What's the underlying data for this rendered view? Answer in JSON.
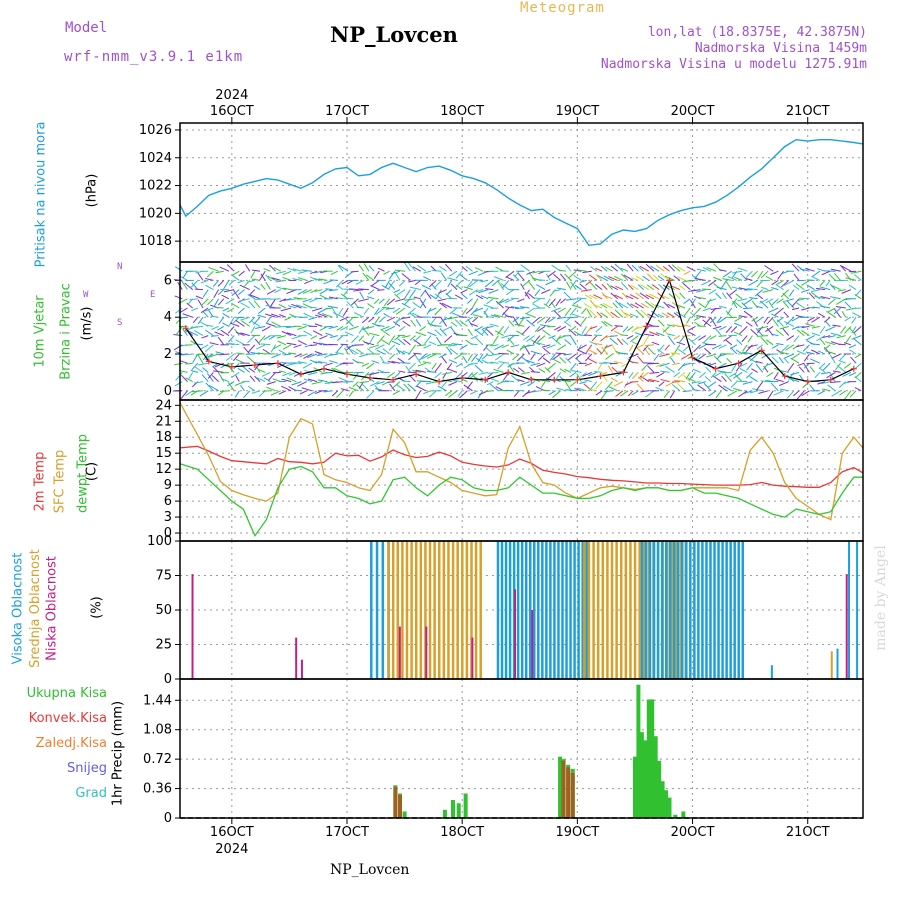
{
  "header": {
    "model_label": "Model",
    "model_value": "wrf-nmm_v3.9.1 e1km",
    "meteogram_label": "Meteogram",
    "station": "NP_Lovcen",
    "lonlat": "lon,lat (18.8375E, 42.3875N)",
    "elevation": "Nadmorska Visina 1459m",
    "model_elevation": "Nadmorska Visina u modelu 1275.91m",
    "footer_station": "NP_Lovcen",
    "watermark": "made by Angel"
  },
  "time_axis": {
    "days": [
      "16OCT",
      "17OCT",
      "18OCT",
      "19OCT",
      "20OCT",
      "21OCT"
    ],
    "year": "2024",
    "range_days": [
      15.55,
      21.48
    ]
  },
  "colors": {
    "pressure": "#1aa0e0",
    "temp2m": "#e83838",
    "sfc": "#d8a028",
    "dew": "#30c830",
    "high": "#1aa0e0",
    "mid": "#d8a028",
    "low": "#c0208a",
    "precip_total": "#30c030",
    "precip_conv": "#e83838",
    "precip_frz": "#f08030",
    "precip_snow": "#6060e0",
    "precip_grad": "#30c0c0"
  },
  "panels": {
    "pressure": {
      "label1": "Pritisak na nivou mora",
      "unit": "(hPa)"
    },
    "wind": {
      "label1": "10m Vjetar",
      "label2": "Brzina i Pravac",
      "unit": "(m/s)",
      "compass_n": "N",
      "compass_w": "W",
      "compass_e": "E",
      "compass_s": "S"
    },
    "temp": {
      "label1": "2m Temp",
      "label2": "SFC Temp",
      "label3": "dewpt Temp",
      "unit": "(C)"
    },
    "cloud": {
      "label1": "Visoka Oblacnost",
      "label2": "Srednja Oblacnost",
      "label3": "Niska Oblacnost",
      "unit": "(%)"
    },
    "precip": {
      "unit": "1hr Precip (mm)",
      "legend": [
        "Ukupna Kisa",
        "Konvek.Kisa",
        "Zaledj.Kisa",
        "Snijeg",
        "Grad"
      ]
    }
  },
  "chart_data": [
    {
      "type": "line",
      "name": "pressure",
      "ylim": [
        1016.5,
        1026.5
      ],
      "yticks": [
        1018,
        1020,
        1022,
        1024,
        1026
      ],
      "x": [
        15.55,
        15.6,
        15.7,
        15.8,
        15.9,
        16.0,
        16.1,
        16.2,
        16.3,
        16.4,
        16.5,
        16.6,
        16.7,
        16.8,
        16.9,
        17.0,
        17.1,
        17.2,
        17.3,
        17.4,
        17.5,
        17.6,
        17.7,
        17.8,
        17.9,
        18.0,
        18.1,
        18.2,
        18.3,
        18.4,
        18.5,
        18.6,
        18.7,
        18.8,
        18.9,
        19.0,
        19.1,
        19.2,
        19.3,
        19.4,
        19.5,
        19.6,
        19.7,
        19.8,
        19.9,
        20.0,
        20.1,
        20.2,
        20.3,
        20.4,
        20.5,
        20.6,
        20.7,
        20.8,
        20.9,
        21.0,
        21.1,
        21.2,
        21.3,
        21.4,
        21.48
      ],
      "series": [
        {
          "values": [
            1020.6,
            1019.8,
            1020.5,
            1021.3,
            1021.6,
            1021.8,
            1022.1,
            1022.3,
            1022.5,
            1022.4,
            1022.1,
            1021.8,
            1022.2,
            1022.8,
            1023.2,
            1023.3,
            1022.7,
            1022.8,
            1023.3,
            1023.6,
            1023.3,
            1023.0,
            1023.3,
            1023.4,
            1023.1,
            1022.7,
            1022.5,
            1022.2,
            1021.7,
            1021.1,
            1020.6,
            1020.2,
            1020.3,
            1019.7,
            1019.3,
            1018.9,
            1017.7,
            1017.8,
            1018.5,
            1018.8,
            1018.7,
            1018.9,
            1019.5,
            1019.9,
            1020.2,
            1020.4,
            1020.5,
            1020.8,
            1021.3,
            1021.9,
            1022.6,
            1023.2,
            1024.0,
            1024.8,
            1025.3,
            1025.2,
            1025.3,
            1025.3,
            1025.2,
            1025.1,
            1025.0
          ]
        }
      ]
    },
    {
      "type": "scatter",
      "name": "wind",
      "ylim": [
        -0.5,
        7
      ],
      "yticks": [
        0,
        2,
        4,
        6
      ],
      "x": [
        15.6,
        15.8,
        16.0,
        16.2,
        16.4,
        16.6,
        16.8,
        17.0,
        17.2,
        17.4,
        17.6,
        17.8,
        18.0,
        18.2,
        18.4,
        18.6,
        18.8,
        19.0,
        19.2,
        19.4,
        19.6,
        19.8,
        20.0,
        20.2,
        20.4,
        20.6,
        20.8,
        21.0,
        21.2,
        21.4
      ],
      "series": [
        {
          "values": [
            3.4,
            1.6,
            1.3,
            1.4,
            1.5,
            0.9,
            1.2,
            0.9,
            0.7,
            0.6,
            0.9,
            0.5,
            0.7,
            0.6,
            1.0,
            0.6,
            0.6,
            0.6,
            0.8,
            1.0,
            3.5,
            6.0,
            1.8,
            1.2,
            1.5,
            2.2,
            0.8,
            0.5,
            0.6,
            1.2
          ]
        }
      ]
    },
    {
      "type": "line",
      "name": "temperature",
      "ylim": [
        -1.5,
        25
      ],
      "yticks": [
        0,
        3,
        6,
        9,
        12,
        15,
        18,
        21,
        24
      ],
      "x": [
        15.55,
        15.7,
        15.8,
        15.9,
        16.0,
        16.1,
        16.2,
        16.3,
        16.4,
        16.5,
        16.6,
        16.7,
        16.8,
        16.9,
        17.0,
        17.1,
        17.2,
        17.3,
        17.4,
        17.5,
        17.6,
        17.7,
        17.8,
        17.9,
        18.0,
        18.1,
        18.2,
        18.3,
        18.4,
        18.5,
        18.6,
        18.7,
        18.8,
        18.9,
        19.0,
        19.1,
        19.2,
        19.3,
        19.4,
        19.5,
        19.6,
        19.7,
        19.8,
        19.9,
        20.0,
        20.1,
        20.2,
        20.3,
        20.4,
        20.5,
        20.6,
        20.7,
        20.8,
        20.9,
        21.0,
        21.1,
        21.2,
        21.3,
        21.4,
        21.48
      ],
      "series": [
        {
          "values": [
            16.0,
            16.3,
            15.4,
            14.4,
            13.6,
            13.4,
            13.2,
            13.0,
            14.0,
            13.4,
            13.3,
            13.0,
            13.3,
            15.0,
            14.5,
            14.6,
            13.5,
            14.3,
            15.6,
            14.7,
            14.2,
            14.4,
            15.2,
            14.5,
            13.3,
            12.9,
            12.6,
            12.4,
            12.8,
            13.9,
            13.1,
            11.8,
            11.4,
            11.1,
            10.6,
            10.4,
            10.1,
            9.9,
            9.8,
            9.6,
            9.4,
            9.4,
            9.3,
            9.3,
            9.2,
            9.1,
            9.0,
            9.0,
            9.0,
            9.1,
            9.5,
            9.0,
            8.8,
            8.7,
            8.6,
            8.6,
            9.5,
            11.5,
            12.3,
            11.3
          ]
        },
        {
          "values": [
            24.5,
            18.5,
            14.5,
            9.7,
            8.0,
            7.2,
            6.5,
            6.0,
            7.5,
            18.0,
            21.5,
            20.5,
            11.0,
            10.0,
            9.5,
            8.5,
            8.0,
            11.0,
            19.5,
            17.0,
            11.5,
            11.5,
            10.5,
            9.5,
            8.0,
            7.5,
            7.0,
            7.2,
            16.0,
            20.0,
            13.0,
            9.5,
            9.0,
            7.5,
            6.5,
            7.5,
            8.5,
            8.8,
            8.5,
            8.2,
            8.5,
            8.5,
            8.0,
            8.0,
            8.5,
            8.5,
            8.5,
            8.5,
            8.0,
            15.5,
            18.0,
            15.0,
            9.5,
            6.5,
            5.0,
            3.5,
            2.5,
            15.0,
            18.0,
            16.0
          ]
        },
        {
          "values": [
            13.0,
            12.0,
            10.0,
            8.0,
            6.0,
            4.5,
            -0.5,
            2.5,
            8.5,
            12.0,
            12.5,
            11.5,
            8.5,
            8.5,
            7.0,
            6.5,
            5.5,
            6.0,
            10.0,
            10.5,
            8.5,
            7.0,
            9.0,
            10.5,
            10.0,
            8.5,
            8.0,
            8.0,
            8.5,
            10.5,
            9.0,
            7.5,
            7.5,
            7.0,
            6.5,
            6.5,
            7.0,
            8.0,
            8.5,
            8.0,
            8.5,
            8.5,
            8.0,
            8.0,
            8.5,
            7.5,
            7.5,
            7.0,
            6.5,
            5.5,
            4.5,
            3.5,
            3.0,
            4.5,
            4.0,
            3.5,
            4.0,
            7.5,
            10.5,
            10.5
          ]
        }
      ]
    },
    {
      "type": "bar",
      "name": "cloud",
      "ylim": [
        0,
        100
      ],
      "yticks": [
        0,
        25,
        50,
        75,
        100
      ],
      "segments": [
        {
          "name": "Visoka Oblacnost",
          "start": 17.2,
          "end": 17.35,
          "step": 0.05,
          "value": 100
        },
        {
          "name": "Srednja Oblacnost",
          "start": 17.35,
          "end": 18.15,
          "step": 0.04,
          "value": 100
        },
        {
          "name": "Visoka Oblacnost",
          "start": 18.3,
          "end": 19.1,
          "step": 0.035,
          "value": 100
        },
        {
          "name": "Srednja Oblacnost",
          "start": 19.05,
          "end": 19.95,
          "step": 0.04,
          "value": 100
        },
        {
          "name": "Visoka Oblacnost",
          "start": 19.55,
          "end": 20.45,
          "step": 0.035,
          "value": 100
        }
      ],
      "bars": [
        {
          "name": "Niska Oblacnost",
          "x": 15.65,
          "value": 76
        },
        {
          "name": "Niska Oblacnost",
          "x": 16.55,
          "value": 30
        },
        {
          "name": "Niska Oblacnost",
          "x": 16.6,
          "value": 14
        },
        {
          "name": "Niska Oblacnost",
          "x": 17.45,
          "value": 38
        },
        {
          "name": "Niska Oblacnost",
          "x": 17.68,
          "value": 38
        },
        {
          "name": "Niska Oblacnost",
          "x": 18.08,
          "value": 30
        },
        {
          "name": "Niska Oblacnost",
          "x": 18.45,
          "value": 65
        },
        {
          "name": "Niska Oblacnost",
          "x": 18.6,
          "value": 50
        },
        {
          "name": "Visoka Oblacnost",
          "x": 20.68,
          "value": 10
        },
        {
          "name": "Srednja Oblacnost",
          "x": 21.2,
          "value": 20
        },
        {
          "name": "Visoka Oblacnost",
          "x": 21.25,
          "value": 22
        },
        {
          "name": "Niska Oblacnost",
          "x": 21.33,
          "value": 76
        },
        {
          "name": "Visoka Oblacnost",
          "x": 21.35,
          "value": 100
        },
        {
          "name": "Visoka Oblacnost",
          "x": 21.42,
          "value": 100
        }
      ]
    },
    {
      "type": "bar",
      "name": "precipitation",
      "ylim": [
        0,
        1.7
      ],
      "yticks": [
        0,
        0.36,
        0.72,
        1.08,
        1.44
      ],
      "series": [
        {
          "name": "Ukupna Kisa",
          "x": [
            17.42,
            17.46,
            17.5,
            17.85,
            17.92,
            17.97,
            18.03,
            18.85,
            18.88,
            18.92,
            18.96,
            19.5,
            19.53,
            19.56,
            19.59,
            19.62,
            19.65,
            19.68,
            19.71,
            19.74,
            19.77,
            19.8,
            19.85,
            19.92
          ],
          "values": [
            0.4,
            0.3,
            0.08,
            0.1,
            0.22,
            0.18,
            0.3,
            0.75,
            0.72,
            0.65,
            0.6,
            0.75,
            1.63,
            1.05,
            0.95,
            1.45,
            1.45,
            1.0,
            0.7,
            0.45,
            0.34,
            0.25,
            0.04,
            0.08
          ]
        },
        {
          "name": "Konvek.Kisa",
          "x": [
            17.42,
            17.46,
            18.88,
            18.92,
            18.96
          ],
          "values": [
            0.38,
            0.28,
            0.7,
            0.62,
            0.55
          ]
        }
      ]
    }
  ]
}
